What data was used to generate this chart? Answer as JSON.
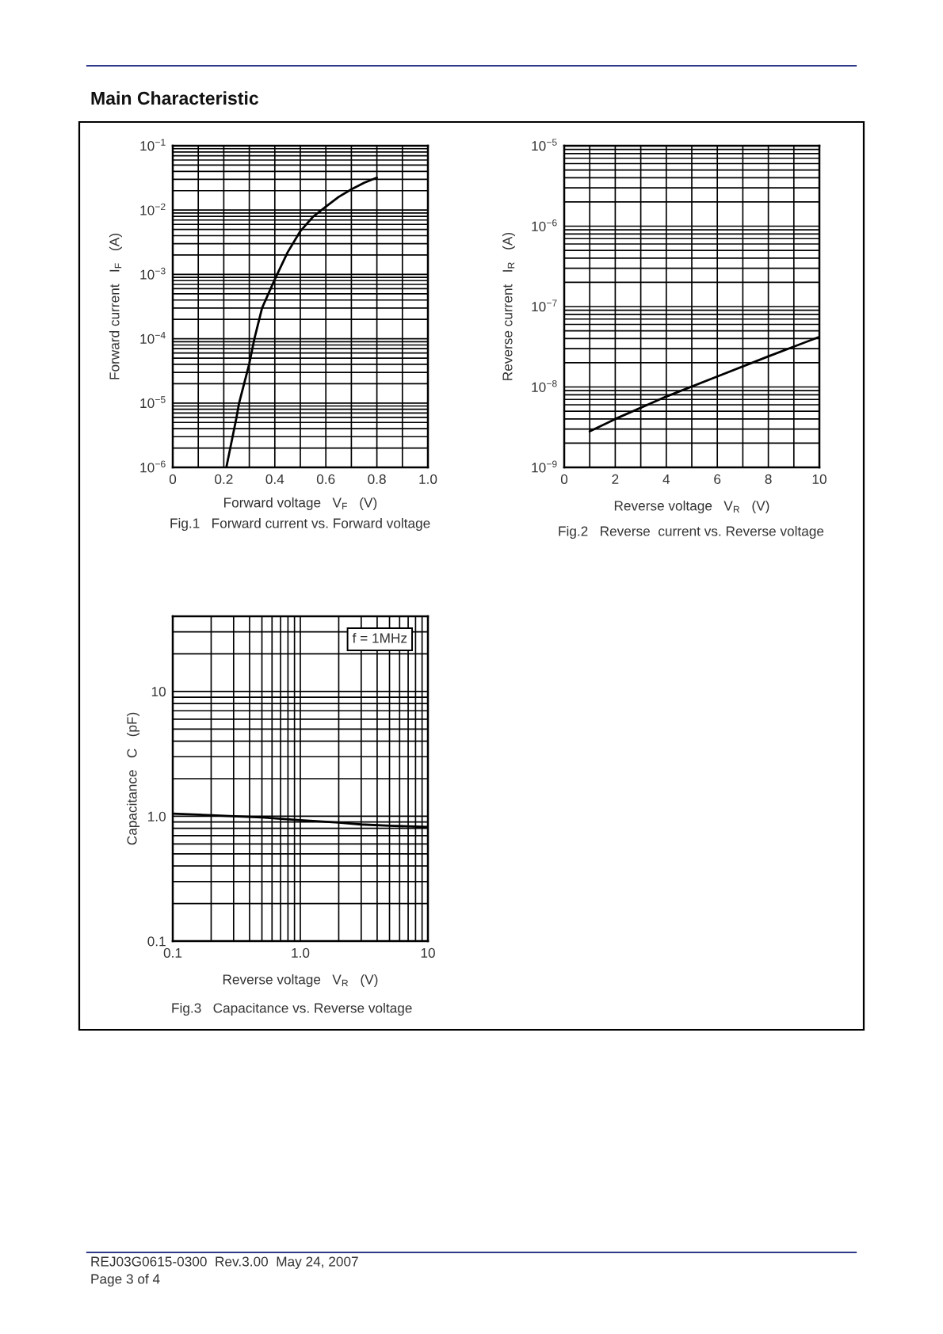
{
  "chart_data": [
    {
      "type": "line",
      "title": "Main Characteristic",
      "xlabel": "Forward voltage   V$_{F}$   (V)",
      "ylabel": "Forward current   I$_{F}$   (A)",
      "x": [
        0.21,
        0.25,
        0.26,
        0.3,
        0.32,
        0.35,
        0.4,
        0.45,
        0.5,
        0.55,
        0.6,
        0.65,
        0.7,
        0.75,
        0.8
      ],
      "series": [
        {
          "color": "#000000",
          "values": [
            1e-06,
            6e-06,
            1e-05,
            4.1e-05,
            0.0001,
            0.0003,
            0.00084,
            0.0022,
            0.0047,
            0.0079,
            0.0113,
            0.016,
            0.021,
            0.0265,
            0.032
          ]
        }
      ],
      "log": "y",
      "xlim": [
        0,
        1
      ],
      "xticks": [
        0,
        0.2,
        0.4,
        0.6,
        0.8,
        {
          "value": 1,
          "label": "1.0"
        }
      ],
      "ylim": [
        1e-06,
        0.1
      ],
      "yticks": [
        {
          "value": 1e-06,
          "label": "10$^{−6}$"
        },
        {
          "value": 1e-05,
          "label": "10$^{−5}$"
        },
        {
          "value": 0.0001,
          "label": "10$^{−4}$"
        },
        {
          "value": 0.001,
          "label": "10$^{−3}$"
        },
        {
          "value": 0.01,
          "label": "10$^{−2}$"
        },
        {
          "value": 0.1,
          "label": "10$^{−1}$"
        }
      ],
      "grid": true,
      "annotations": [
        "Fig.1   Forward current vs. Forward voltage"
      ]
    },
    {
      "type": "line",
      "xlabel": "Reverse voltage   V$_{R}$   (V)",
      "ylabel": "Reverse current   I$_{R}$   (A)",
      "x": [
        1,
        2,
        4,
        6,
        8,
        10
      ],
      "series": [
        {
          "color": "#000000",
          "values": [
            2.8e-09,
            4e-09,
            7.6e-09,
            1.35e-08,
            2.4e-08,
            4.2e-08
          ]
        }
      ],
      "log": "y",
      "xlim": [
        0,
        10
      ],
      "xticks": [
        0,
        2,
        4,
        6,
        8,
        10
      ],
      "ylim": [
        1e-09,
        1e-05
      ],
      "yticks": [
        {
          "value": 1e-09,
          "label": "10$^{−9}$"
        },
        {
          "value": 1e-08,
          "label": "10$^{−8}$"
        },
        {
          "value": 1e-07,
          "label": "10$^{−7}$"
        },
        {
          "value": 1e-06,
          "label": "10$^{−6}$"
        },
        {
          "value": 1e-05,
          "label": "10$^{−5}$"
        }
      ],
      "grid": true,
      "annotations": [
        "Fig.2   Reverse  current vs. Reverse voltage"
      ]
    },
    {
      "type": "line",
      "xlabel": "Reverse voltage   V$_{R}$   (V)",
      "ylabel": "Capacitance   C   (pF)",
      "x": [
        0.1,
        0.2,
        0.3,
        0.5,
        1,
        2,
        3,
        5,
        10
      ],
      "series": [
        {
          "color": "#000000",
          "values": [
            1.05,
            1.02,
            1.0,
            0.98,
            0.93,
            0.89,
            0.86,
            0.84,
            0.82
          ]
        }
      ],
      "log": "xy",
      "xlim": [
        0.1,
        10
      ],
      "xticks": [
        0.1,
        {
          "value": 1,
          "label": "1.0"
        },
        10
      ],
      "ylim": [
        0.1,
        40
      ],
      "yticks": [
        0.1,
        {
          "value": 1,
          "label": "1.0"
        },
        10
      ],
      "grid": true,
      "annotations": [
        "f = 1MHz",
        "Fig.3   Capacitance vs. Reverse voltage",
        "REJ03G0615-0300  Rev.3.00  May 24, 2007",
        "Page 3 of 4"
      ]
    }
  ]
}
